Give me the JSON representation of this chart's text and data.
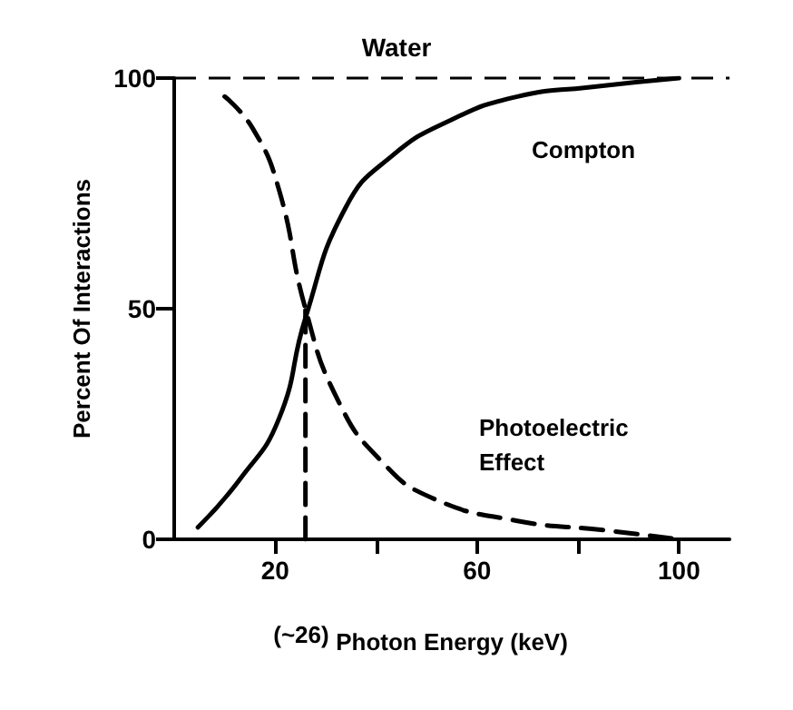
{
  "chart_data": {
    "type": "line",
    "title": "Water",
    "xlabel": "Photon Energy (keV)",
    "ylabel": "Percent Of Interactions",
    "xlim": [
      0,
      110
    ],
    "ylim": [
      0,
      100
    ],
    "xticks": [
      {
        "value": 20,
        "label": "20"
      },
      {
        "value": 40,
        "label": null
      },
      {
        "value": 60,
        "label": "60"
      },
      {
        "value": 80,
        "label": null
      },
      {
        "value": 100,
        "label": "100"
      }
    ],
    "yticks": [
      0,
      50,
      100
    ],
    "grid": false,
    "marker": "none",
    "series": [
      {
        "color": "#000000",
        "line_style": "solid",
        "x": [
          4.7,
          13,
          20.7,
          26,
          34,
          43,
          55,
          68,
          82,
          100
        ],
        "values": [
          2.6,
          13,
          26,
          48,
          72,
          83,
          91,
          96,
          98,
          100
        ]
      },
      {
        "color": "#000000",
        "line_style": "dashed",
        "x": [
          10,
          15.6,
          20.7,
          26,
          32.5,
          41,
          51,
          68,
          85,
          100
        ],
        "values": [
          96,
          89,
          76,
          50,
          30,
          17,
          9,
          4,
          2,
          0
        ]
      },
      {
        "color": "#000000",
        "line_style": "dashed",
        "x": [
          26,
          26
        ],
        "values": [
          0,
          50
        ]
      }
    ],
    "ref_lines": [
      {
        "axis": "y",
        "value": 100,
        "color": "#000000",
        "line_style": "dashed"
      }
    ],
    "annotations": [
      "Compton",
      "Photoelectric\nEffect",
      "(~26)"
    ]
  }
}
